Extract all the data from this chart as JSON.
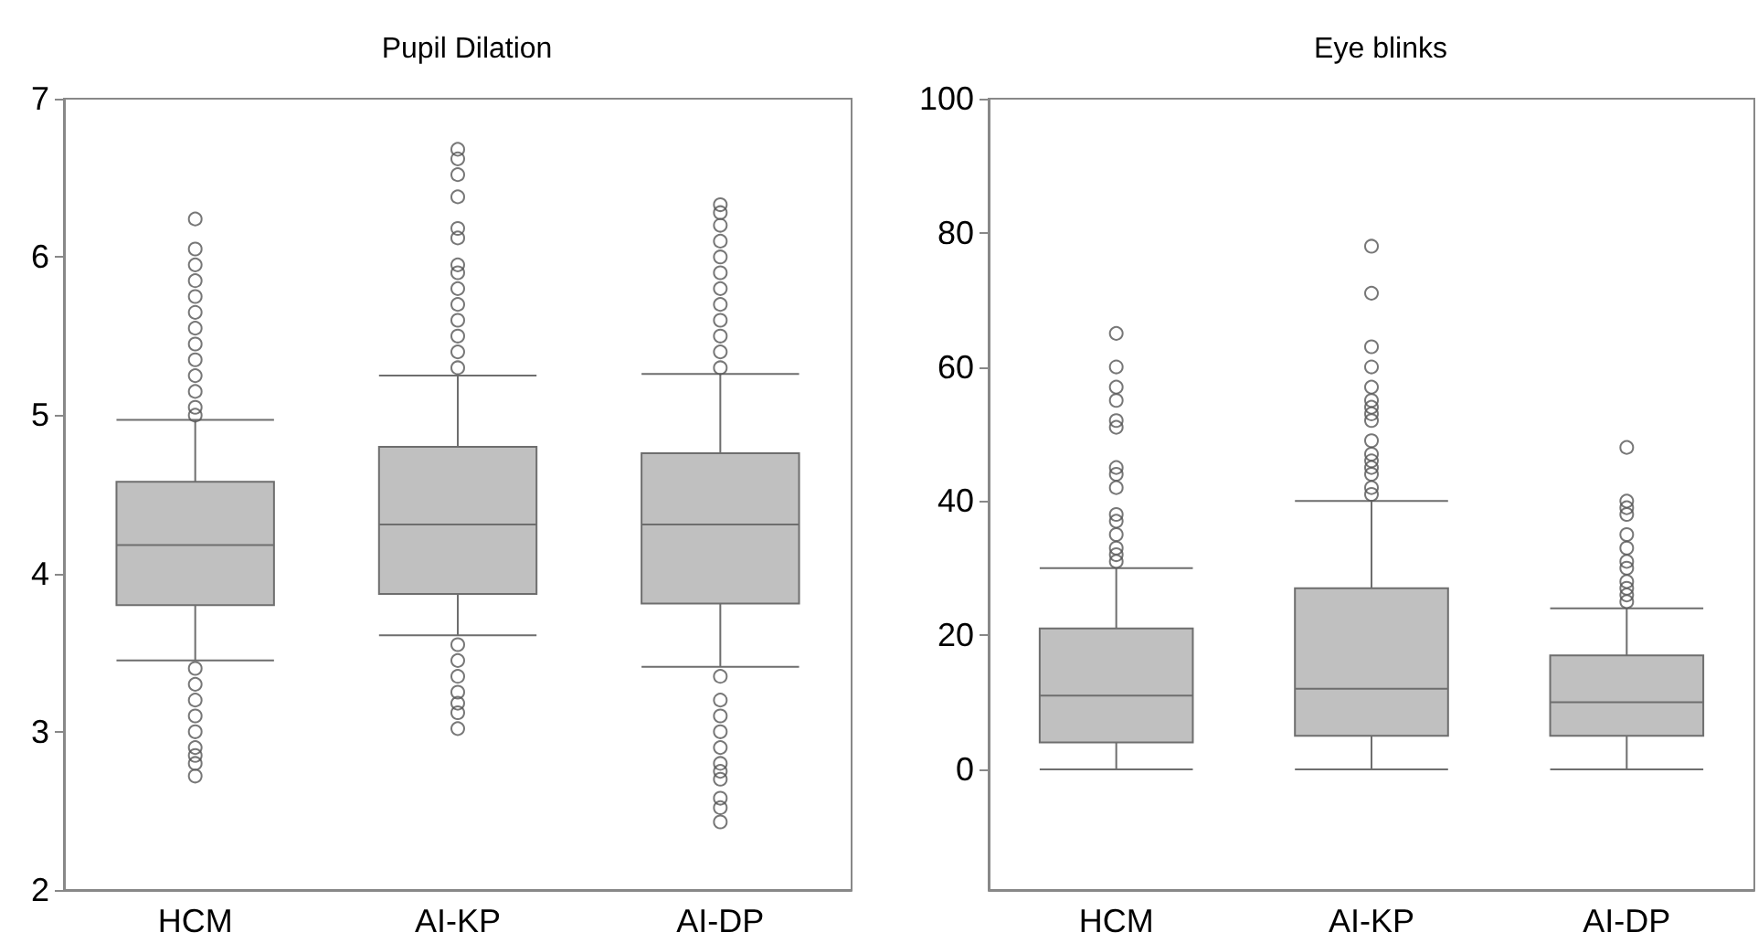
{
  "chart_data": [
    {
      "type": "box",
      "title": "Pupil Dilation",
      "categories": [
        "HCM",
        "AI-KP",
        "AI-DP"
      ],
      "ylim": [
        2,
        7
      ],
      "yticks": [
        2,
        3,
        4,
        5,
        6,
        7
      ],
      "series": [
        {
          "color": "#c0c0c0",
          "boxes": [
            {
              "low": 3.45,
              "q1": 3.8,
              "median": 4.18,
              "q3": 4.58,
              "high": 4.97,
              "outliers": [
                6.24,
                6.05,
                5.95,
                5.85,
                5.75,
                5.65,
                5.55,
                5.45,
                5.35,
                5.25,
                5.15,
                5.05,
                5.0,
                3.4,
                3.3,
                3.2,
                3.1,
                3.0,
                2.9,
                2.85,
                2.8,
                2.72
              ]
            },
            {
              "low": 3.61,
              "q1": 3.87,
              "median": 4.31,
              "q3": 4.8,
              "high": 5.25,
              "outliers": [
                6.68,
                6.62,
                6.52,
                6.38,
                6.18,
                6.12,
                5.95,
                5.9,
                5.8,
                5.7,
                5.6,
                5.5,
                5.4,
                5.3,
                3.55,
                3.45,
                3.35,
                3.25,
                3.18,
                3.12,
                3.02
              ]
            },
            {
              "low": 3.41,
              "q1": 3.81,
              "median": 4.31,
              "q3": 4.76,
              "high": 5.26,
              "outliers": [
                6.33,
                6.28,
                6.2,
                6.1,
                6.0,
                5.9,
                5.8,
                5.7,
                5.6,
                5.5,
                5.4,
                5.3,
                3.35,
                3.2,
                3.1,
                3.0,
                2.9,
                2.8,
                2.75,
                2.7,
                2.58,
                2.52,
                2.43
              ]
            }
          ]
        }
      ]
    },
    {
      "type": "box",
      "title": "Eye blinks",
      "categories": [
        "HCM",
        "AI-KP",
        "AI-DP"
      ],
      "ylim": [
        -18,
        100
      ],
      "yticks": [
        0,
        20,
        40,
        60,
        80,
        100
      ],
      "series": [
        {
          "color": "#c0c0c0",
          "boxes": [
            {
              "low": 0,
              "q1": 4,
              "median": 11,
              "q3": 21,
              "high": 30,
              "outliers": [
                65,
                60,
                57,
                55,
                52,
                51,
                45,
                44,
                42,
                38,
                37,
                35,
                33,
                32,
                31
              ]
            },
            {
              "low": 0,
              "q1": 5,
              "median": 12,
              "q3": 27,
              "high": 40,
              "outliers": [
                78,
                71,
                63,
                60,
                57,
                55,
                54,
                53,
                52,
                49,
                47,
                46,
                45,
                44,
                42,
                41
              ]
            },
            {
              "low": 0,
              "q1": 5,
              "median": 10,
              "q3": 17,
              "high": 24,
              "outliers": [
                48,
                40,
                39,
                38,
                35,
                33,
                31,
                30,
                28,
                27,
                26,
                25
              ]
            }
          ]
        }
      ]
    }
  ]
}
